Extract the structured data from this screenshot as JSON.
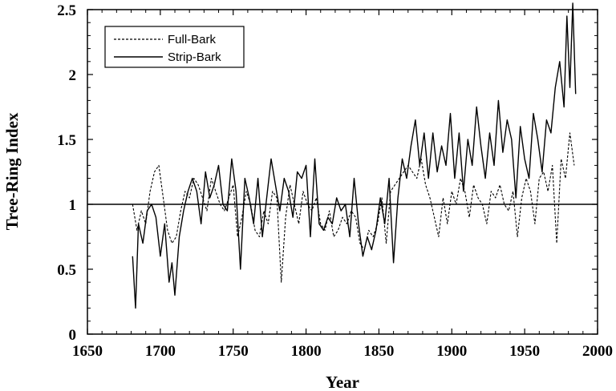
{
  "chart_data": {
    "type": "line",
    "xlabel": "Year",
    "ylabel": "Tree-Ring Index",
    "xlim": [
      1650,
      2000
    ],
    "ylim": [
      0,
      2.5
    ],
    "x_ticks": [
      1650,
      1700,
      1750,
      1800,
      1850,
      1900,
      1950,
      2000
    ],
    "x_tick_labels": [
      "1650",
      "1700",
      "1750",
      "1800",
      "1850",
      "1900",
      "1950",
      "2000"
    ],
    "y_ticks": [
      0,
      0.5,
      1,
      1.5,
      2,
      2.5
    ],
    "y_tick_labels": [
      "0",
      "0.5",
      "1",
      "1.5",
      "2",
      "2.5"
    ],
    "reference_line": 1,
    "legend_position": "top-left",
    "series": [
      {
        "name": "Full-Bark",
        "style": "dashed",
        "x": [
          1681,
          1684,
          1687,
          1690,
          1693,
          1696,
          1699,
          1702,
          1705,
          1708,
          1711,
          1714,
          1717,
          1720,
          1723,
          1726,
          1729,
          1732,
          1735,
          1738,
          1741,
          1744,
          1747,
          1750,
          1753,
          1756,
          1759,
          1762,
          1765,
          1768,
          1771,
          1774,
          1777,
          1780,
          1783,
          1786,
          1789,
          1792,
          1795,
          1798,
          1801,
          1804,
          1807,
          1810,
          1813,
          1816,
          1819,
          1822,
          1825,
          1828,
          1831,
          1834,
          1837,
          1840,
          1843,
          1846,
          1849,
          1852,
          1855,
          1858,
          1861,
          1864,
          1867,
          1870,
          1873,
          1876,
          1879,
          1882,
          1885,
          1888,
          1891,
          1894,
          1897,
          1900,
          1903,
          1906,
          1909,
          1912,
          1915,
          1918,
          1921,
          1924,
          1927,
          1930,
          1933,
          1936,
          1939,
          1942,
          1945,
          1948,
          1951,
          1954,
          1957,
          1960,
          1963,
          1966,
          1969,
          1972,
          1975,
          1978,
          1981,
          1984
        ],
        "values": [
          1.0,
          0.8,
          0.95,
          0.85,
          1.1,
          1.25,
          1.3,
          1.05,
          0.8,
          0.7,
          0.75,
          0.95,
          1.1,
          1.05,
          1.2,
          1.15,
          1.05,
          0.95,
          1.2,
          1.1,
          1.0,
          0.95,
          1.05,
          1.15,
          0.75,
          0.9,
          1.1,
          1.0,
          0.8,
          0.75,
          0.95,
          0.85,
          1.1,
          1.05,
          0.4,
          0.9,
          1.15,
          1.0,
          0.85,
          1.1,
          1.0,
          0.95,
          1.05,
          0.85,
          0.8,
          0.95,
          0.75,
          0.8,
          0.9,
          0.85,
          0.95,
          0.9,
          0.7,
          0.65,
          0.8,
          0.75,
          0.85,
          1.05,
          0.7,
          1.1,
          1.15,
          1.2,
          1.25,
          1.3,
          1.25,
          1.2,
          1.35,
          1.15,
          1.05,
          0.9,
          0.75,
          1.05,
          0.85,
          1.1,
          1.0,
          1.2,
          1.1,
          0.9,
          1.15,
          1.05,
          1.0,
          0.85,
          1.1,
          1.05,
          1.15,
          1.0,
          0.95,
          1.1,
          0.75,
          1.05,
          1.2,
          1.1,
          0.85,
          1.2,
          1.25,
          1.1,
          1.3,
          0.7,
          1.35,
          1.2,
          1.55,
          1.3
        ]
      },
      {
        "name": "Strip-Bark",
        "style": "solid",
        "x": [
          1681,
          1683,
          1685,
          1688,
          1691,
          1694,
          1697,
          1700,
          1703,
          1706,
          1708,
          1710,
          1713,
          1716,
          1719,
          1722,
          1725,
          1728,
          1731,
          1734,
          1737,
          1740,
          1743,
          1746,
          1749,
          1752,
          1755,
          1758,
          1761,
          1764,
          1767,
          1770,
          1773,
          1776,
          1779,
          1782,
          1785,
          1788,
          1791,
          1794,
          1797,
          1800,
          1803,
          1806,
          1809,
          1812,
          1815,
          1818,
          1821,
          1824,
          1827,
          1830,
          1833,
          1836,
          1839,
          1842,
          1845,
          1848,
          1851,
          1854,
          1857,
          1860,
          1863,
          1866,
          1869,
          1872,
          1875,
          1878,
          1881,
          1884,
          1887,
          1890,
          1893,
          1896,
          1899,
          1902,
          1905,
          1908,
          1911,
          1914,
          1917,
          1920,
          1923,
          1926,
          1929,
          1932,
          1935,
          1938,
          1941,
          1944,
          1947,
          1950,
          1953,
          1956,
          1959,
          1962,
          1965,
          1968,
          1971,
          1974,
          1977,
          1979,
          1981,
          1983,
          1985
        ],
        "values": [
          0.6,
          0.2,
          0.85,
          0.7,
          0.95,
          1.0,
          0.9,
          0.6,
          0.85,
          0.4,
          0.55,
          0.3,
          0.75,
          0.95,
          1.1,
          1.2,
          1.1,
          0.85,
          1.25,
          1.05,
          1.15,
          1.3,
          1.0,
          0.95,
          1.35,
          1.1,
          0.5,
          1.2,
          1.05,
          0.85,
          1.2,
          0.75,
          1.05,
          1.35,
          1.15,
          0.95,
          1.2,
          1.1,
          0.9,
          1.25,
          1.2,
          1.3,
          0.75,
          1.35,
          0.85,
          0.8,
          0.9,
          0.85,
          1.05,
          0.95,
          1.0,
          0.75,
          1.2,
          0.85,
          0.6,
          0.75,
          0.65,
          0.8,
          1.05,
          0.85,
          1.2,
          0.55,
          1.05,
          1.35,
          1.2,
          1.45,
          1.65,
          1.3,
          1.55,
          1.2,
          1.55,
          1.25,
          1.45,
          1.3,
          1.7,
          1.2,
          1.55,
          1.1,
          1.5,
          1.3,
          1.75,
          1.45,
          1.2,
          1.55,
          1.3,
          1.8,
          1.4,
          1.65,
          1.5,
          1.05,
          1.6,
          1.35,
          1.2,
          1.7,
          1.5,
          1.25,
          1.65,
          1.55,
          1.9,
          2.1,
          1.75,
          2.45,
          1.9,
          2.55,
          1.85
        ]
      }
    ]
  }
}
